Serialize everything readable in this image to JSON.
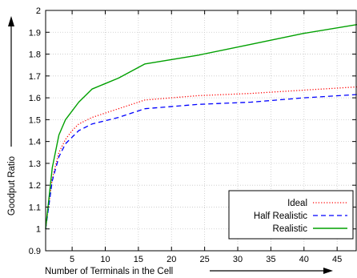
{
  "chart_data": {
    "type": "line",
    "title": "",
    "xlabel": "Number of Terminals in the Cell",
    "ylabel": "Goodput Ratio",
    "xlim": [
      1,
      48
    ],
    "ylim": [
      0.9,
      2.0
    ],
    "xticks": [
      5,
      10,
      15,
      20,
      25,
      30,
      35,
      40,
      45
    ],
    "yticks": [
      0.9,
      1.0,
      1.1,
      1.2,
      1.3,
      1.4,
      1.5,
      1.6,
      1.7,
      1.8,
      1.9,
      2.0
    ],
    "ytick_labels": [
      "0.9",
      "1",
      "1.1",
      "1.2",
      "1.3",
      "1.4",
      "1.5",
      "1.6",
      "1.7",
      "1.8",
      "1.9",
      "2"
    ],
    "grid": true,
    "legend_position": "bottom-right",
    "series": [
      {
        "name": "Ideal",
        "color": "#ff0000",
        "style": "dotted",
        "x": [
          1,
          2,
          3,
          4,
          5,
          6,
          8,
          12,
          16,
          24,
          32,
          40,
          48
        ],
        "y": [
          1.0,
          1.23,
          1.35,
          1.41,
          1.45,
          1.48,
          1.51,
          1.55,
          1.59,
          1.61,
          1.62,
          1.635,
          1.65
        ]
      },
      {
        "name": "Half Realistic",
        "color": "#0000ff",
        "style": "dashed",
        "x": [
          1,
          2,
          3,
          4,
          5,
          6,
          8,
          12,
          16,
          24,
          32,
          40,
          48
        ],
        "y": [
          1.0,
          1.22,
          1.33,
          1.39,
          1.42,
          1.45,
          1.48,
          1.51,
          1.55,
          1.57,
          1.58,
          1.6,
          1.615
        ]
      },
      {
        "name": "Realistic",
        "color": "#00a000",
        "style": "solid",
        "x": [
          1,
          2,
          3,
          4,
          6,
          8,
          12,
          16,
          24,
          32,
          40,
          48
        ],
        "y": [
          1.0,
          1.28,
          1.43,
          1.5,
          1.58,
          1.64,
          1.69,
          1.755,
          1.795,
          1.845,
          1.895,
          1.935
        ]
      }
    ]
  }
}
